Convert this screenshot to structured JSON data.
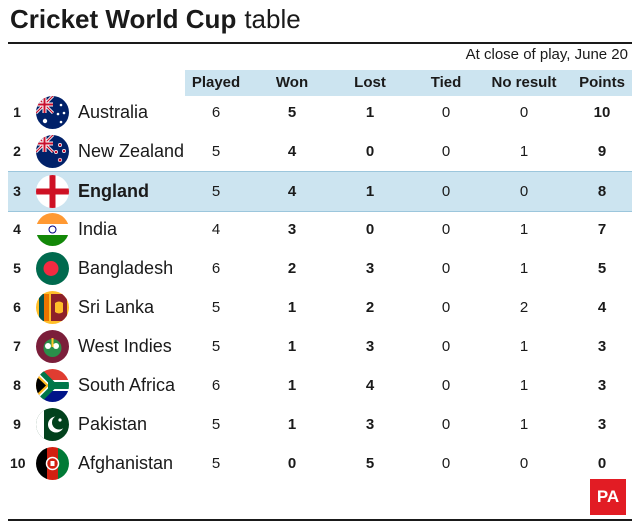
{
  "title": {
    "bold": "Cricket World Cup",
    "light": "table"
  },
  "subtitle": "At close of play, June 20",
  "columns": [
    "Played",
    "Won",
    "Lost",
    "Tied",
    "No result",
    "Points"
  ],
  "rows": [
    {
      "rank": "1",
      "team": "Australia",
      "flag": "australia-flag-icon",
      "played": "6",
      "won": "5",
      "lost": "1",
      "tied": "0",
      "nr": "0",
      "points": "10"
    },
    {
      "rank": "2",
      "team": "New Zealand",
      "flag": "new-zealand-flag-icon",
      "played": "5",
      "won": "4",
      "lost": "0",
      "tied": "0",
      "nr": "1",
      "points": "9"
    },
    {
      "rank": "3",
      "team": "England",
      "flag": "england-flag-icon",
      "played": "5",
      "won": "4",
      "lost": "1",
      "tied": "0",
      "nr": "0",
      "points": "8",
      "highlight": true
    },
    {
      "rank": "4",
      "team": "India",
      "flag": "india-flag-icon",
      "played": "4",
      "won": "3",
      "lost": "0",
      "tied": "0",
      "nr": "1",
      "points": "7"
    },
    {
      "rank": "5",
      "team": "Bangladesh",
      "flag": "bangladesh-flag-icon",
      "played": "6",
      "won": "2",
      "lost": "3",
      "tied": "0",
      "nr": "1",
      "points": "5"
    },
    {
      "rank": "6",
      "team": "Sri Lanka",
      "flag": "sri-lanka-flag-icon",
      "played": "5",
      "won": "1",
      "lost": "2",
      "tied": "0",
      "nr": "2",
      "points": "4"
    },
    {
      "rank": "7",
      "team": "West Indies",
      "flag": "west-indies-flag-icon",
      "played": "5",
      "won": "1",
      "lost": "3",
      "tied": "0",
      "nr": "1",
      "points": "3"
    },
    {
      "rank": "8",
      "team": "South Africa",
      "flag": "south-africa-flag-icon",
      "played": "6",
      "won": "1",
      "lost": "4",
      "tied": "0",
      "nr": "1",
      "points": "3"
    },
    {
      "rank": "9",
      "team": "Pakistan",
      "flag": "pakistan-flag-icon",
      "played": "5",
      "won": "1",
      "lost": "3",
      "tied": "0",
      "nr": "1",
      "points": "3"
    },
    {
      "rank": "10",
      "team": "Afghanistan",
      "flag": "afghanistan-flag-icon",
      "played": "5",
      "won": "0",
      "lost": "5",
      "tied": "0",
      "nr": "0",
      "points": "0"
    }
  ],
  "colors": {
    "highlight": "#cce4f0",
    "logo": "#e21c24"
  },
  "logo": "PA"
}
